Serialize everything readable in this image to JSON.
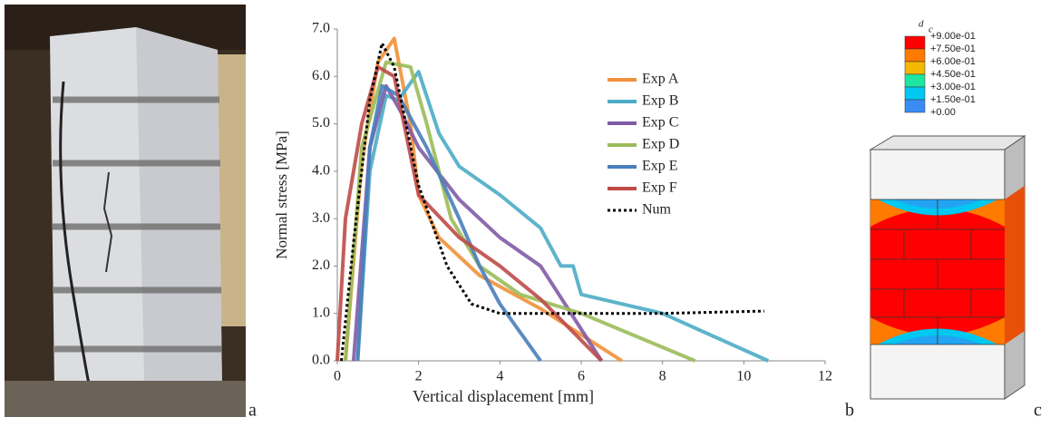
{
  "chart_data": {
    "type": "line",
    "xlabel": "Vertical displacement [mm]",
    "ylabel": "Normal stress [MPa]",
    "xlim": [
      0,
      12
    ],
    "xticks": [
      0,
      2,
      4,
      6,
      8,
      10,
      12
    ],
    "ylim": [
      0,
      7
    ],
    "yticks": [
      {
        "value": 0,
        "label": "0.0"
      },
      {
        "value": 1,
        "label": "1.0"
      },
      {
        "value": 2,
        "label": "2.0"
      },
      {
        "value": 3,
        "label": "3.0"
      },
      {
        "value": 4,
        "label": "4.0"
      },
      {
        "value": 5,
        "label": "5.0"
      },
      {
        "value": 6,
        "label": "6.0"
      },
      {
        "value": 7,
        "label": "7.0"
      }
    ],
    "legend": "center-right",
    "series": [
      {
        "name": "Exp A",
        "color": "#f0913a",
        "x": [
          0.2,
          0.6,
          1.0,
          1.4,
          1.8,
          2.0,
          2.5,
          3.5,
          5.0,
          7.0
        ],
        "values": [
          0,
          4.2,
          6.3,
          6.8,
          5.0,
          3.5,
          2.6,
          1.8,
          1.1,
          0
        ]
      },
      {
        "name": "Exp B",
        "color": "#4bacc6",
        "x": [
          0.5,
          0.8,
          1.2,
          1.5,
          2.0,
          2.5,
          3.0,
          4.0,
          5.0,
          5.5,
          5.8,
          6.0,
          8.0,
          10.6
        ],
        "values": [
          0,
          4.0,
          5.6,
          5.5,
          6.1,
          4.8,
          4.1,
          3.5,
          2.8,
          2.0,
          2.0,
          1.4,
          1.0,
          0
        ]
      },
      {
        "name": "Exp C",
        "color": "#7f5ba6",
        "x": [
          0.4,
          0.8,
          1.2,
          1.6,
          2.0,
          3.0,
          4.0,
          5.0,
          5.3,
          6.5
        ],
        "values": [
          0,
          4.5,
          5.8,
          5.2,
          4.5,
          3.4,
          2.6,
          2.0,
          1.6,
          0
        ]
      },
      {
        "name": "Exp D",
        "color": "#9bbb59",
        "x": [
          0.2,
          0.6,
          1.2,
          1.8,
          2.2,
          2.8,
          3.5,
          4.5,
          6.0,
          8.8
        ],
        "values": [
          0,
          4.5,
          6.3,
          6.2,
          5.0,
          3.0,
          2.0,
          1.4,
          1.0,
          0
        ]
      },
      {
        "name": "Exp E",
        "color": "#4a7ebb",
        "x": [
          0.5,
          0.8,
          1.1,
          1.5,
          2.2,
          3.0,
          3.5,
          4.0,
          5.0
        ],
        "values": [
          0,
          4.5,
          5.8,
          5.6,
          4.5,
          3.0,
          2.0,
          1.2,
          0
        ]
      },
      {
        "name": "Exp F",
        "color": "#be4b48",
        "x": [
          0,
          0.2,
          0.6,
          1.0,
          1.4,
          2.0,
          3.0,
          4.0,
          5.0,
          6.5
        ],
        "values": [
          0,
          3.0,
          5.0,
          6.2,
          6.0,
          3.5,
          2.6,
          2.0,
          1.3,
          0
        ]
      },
      {
        "name": "Num",
        "color": "#000000",
        "dashed": true,
        "x": [
          0.1,
          0.4,
          0.8,
          1.1,
          1.4,
          2.0,
          2.7,
          3.3,
          4.0,
          8.0,
          10.5
        ],
        "values": [
          0,
          2.5,
          5.5,
          6.7,
          6.2,
          3.7,
          2.0,
          1.2,
          1.0,
          1.0,
          1.05
        ]
      }
    ]
  },
  "panels": [
    "a",
    "b",
    "c"
  ],
  "contour": {
    "symbol": "d",
    "subscript": "c",
    "levels": [
      "+9.00e-01",
      "+7.50e-01",
      "+6.00e-01",
      "+4.50e-01",
      "+3.00e-01",
      "+1.50e-01",
      "+0.00"
    ],
    "colors": [
      "#ff0000",
      "#ff7a00",
      "#f5b800",
      "#1ee6a0",
      "#00c8f0",
      "#3a8cf5"
    ]
  }
}
